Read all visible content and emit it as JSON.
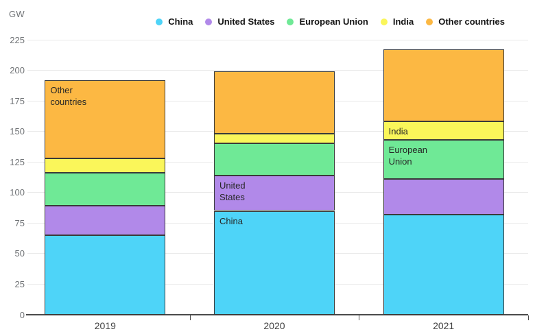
{
  "header": {
    "unit_label": "GW"
  },
  "chart_data": {
    "type": "bar",
    "stacked": true,
    "title": "",
    "unit": "GW",
    "categories": [
      "2019",
      "2020",
      "2021"
    ],
    "series": [
      {
        "name": "China",
        "color": "#4ED4F8",
        "values": [
          65,
          85,
          82
        ]
      },
      {
        "name": "United States",
        "color": "#B189E9",
        "values": [
          24,
          29,
          29
        ]
      },
      {
        "name": "European Union",
        "color": "#6FE996",
        "values": [
          27,
          26,
          32
        ]
      },
      {
        "name": "India",
        "color": "#FAF65A",
        "values": [
          12,
          8,
          15
        ]
      },
      {
        "name": "Other countries",
        "color": "#FCB843",
        "values": [
          64,
          51,
          59
        ]
      }
    ],
    "totals": [
      192,
      199,
      217
    ],
    "ylim": [
      0,
      225
    ],
    "y_ticks": [
      0,
      25,
      50,
      75,
      100,
      125,
      150,
      175,
      200,
      225
    ],
    "grid": "horizontal",
    "legend_position": "top-right",
    "bar_annotations": [
      {
        "category": "2019",
        "series": "Other countries",
        "lines": [
          "Other",
          "countries"
        ]
      },
      {
        "category": "2020",
        "series": "United States",
        "lines": [
          "United",
          "States"
        ]
      },
      {
        "category": "2020",
        "series": "China",
        "lines": [
          "China"
        ]
      },
      {
        "category": "2021",
        "series": "India",
        "lines": [
          "India"
        ]
      },
      {
        "category": "2021",
        "series": "European Union",
        "lines": [
          "European",
          "Union"
        ]
      }
    ]
  },
  "colors": {
    "background": "#ffffff",
    "grid": "#e9e9e9",
    "axis": "#4a4a4a",
    "segment_border": "#3a3a3a",
    "tick_text": "#6f7275",
    "category_text": "#3f3f3f",
    "legend_text": "#141414",
    "annotation_text": "#262626"
  }
}
